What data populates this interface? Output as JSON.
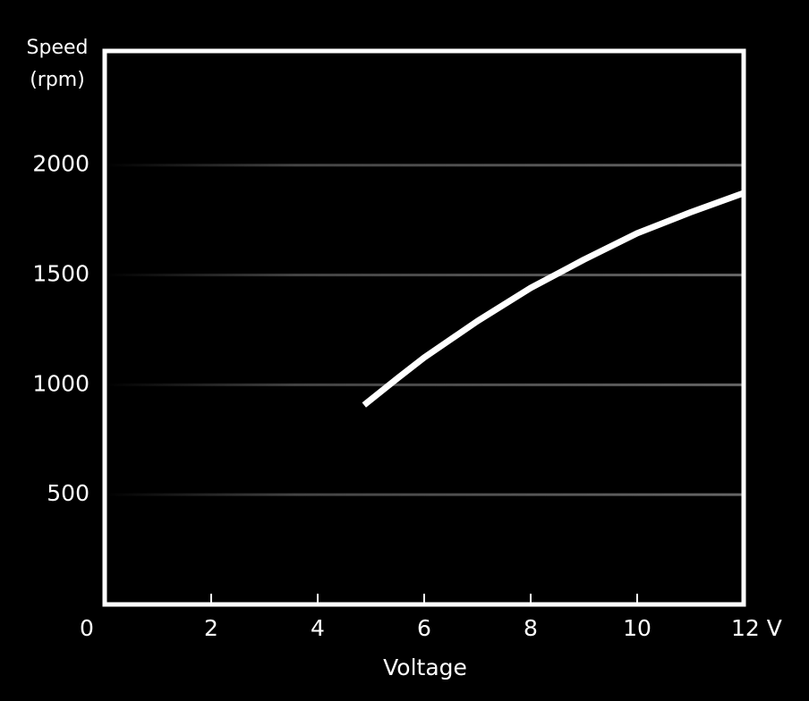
{
  "chart_data": {
    "type": "line",
    "ylabel": [
      "Speed",
      "(rpm)"
    ],
    "xlabel": "Voltage",
    "x": [
      4.87,
      5.5,
      6,
      7,
      8,
      9,
      10,
      11,
      12
    ],
    "values": [
      908,
      1030,
      1124,
      1290,
      1441,
      1570,
      1690,
      1785,
      1873
    ],
    "color": "#ffffff",
    "xlim": [
      0,
      12
    ],
    "xticks": [
      0,
      2,
      4,
      6,
      8,
      10,
      {
        "value": 12,
        "label": "12 V"
      }
    ],
    "ylim": [
      0,
      2520
    ],
    "yticks": [
      500,
      1000,
      1500,
      2000
    ],
    "grid": true
  }
}
